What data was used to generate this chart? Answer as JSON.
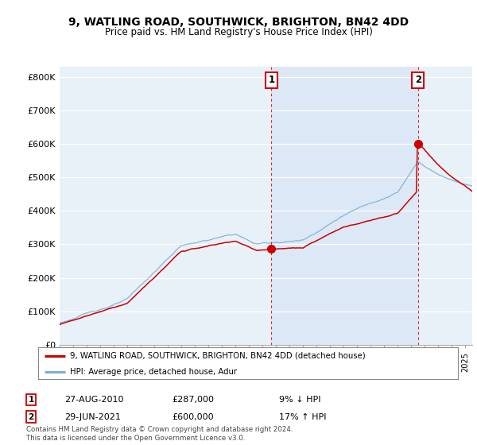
{
  "title": "9, WATLING ROAD, SOUTHWICK, BRIGHTON, BN42 4DD",
  "subtitle": "Price paid vs. HM Land Registry's House Price Index (HPI)",
  "ylabel_ticks": [
    "£0",
    "£100K",
    "£200K",
    "£300K",
    "£400K",
    "£500K",
    "£600K",
    "£700K",
    "£800K"
  ],
  "ytick_values": [
    0,
    100000,
    200000,
    300000,
    400000,
    500000,
    600000,
    700000,
    800000
  ],
  "ylim": [
    0,
    830000
  ],
  "sale1_date": "27-AUG-2010",
  "sale1_price": 287000,
  "sale1_label": "1",
  "sale1_pct": "9% ↓ HPI",
  "sale2_date": "29-JUN-2021",
  "sale2_price": 600000,
  "sale2_label": "2",
  "sale2_pct": "17% ↑ HPI",
  "legend_line1": "9, WATLING ROAD, SOUTHWICK, BRIGHTON, BN42 4DD (detached house)",
  "legend_line2": "HPI: Average price, detached house, Adur",
  "footer": "Contains HM Land Registry data © Crown copyright and database right 2024.\nThis data is licensed under the Open Government Licence v3.0.",
  "line_color_red": "#cc0000",
  "line_color_blue": "#7bafd4",
  "highlight_color": "#dce8f5",
  "background_color": "#e8f0f8",
  "plot_bg": "#ffffff",
  "sale1_x": 2010.65,
  "sale2_x": 2021.49,
  "xlim_start": 1995,
  "xlim_end": 2025.5
}
